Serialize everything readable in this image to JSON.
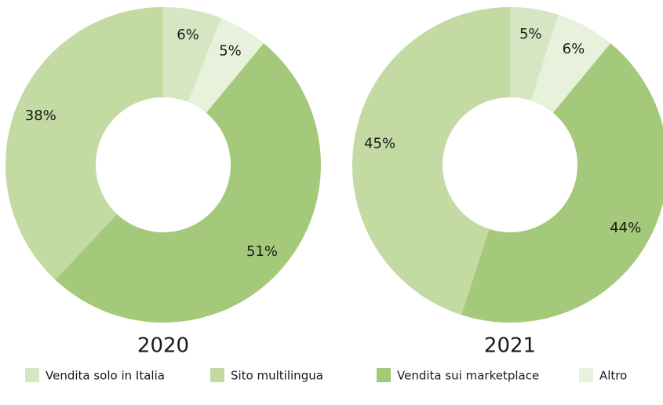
{
  "legend": [
    {
      "name": "Vendita solo in Italia",
      "color": "#d6e6c2"
    },
    {
      "name": "Sito multilingua",
      "color": "#c3dba3"
    },
    {
      "name": "Vendita sui marketplace",
      "color": "#a5c97a"
    },
    {
      "name": "Altro",
      "color": "#e7f1db"
    }
  ],
  "chart_data": [
    {
      "type": "pie",
      "title": "2020",
      "values": [
        6,
        38,
        51,
        5
      ],
      "value_labels": [
        "6%",
        "38%",
        "51%",
        "5%"
      ]
    },
    {
      "type": "pie",
      "title": "2021",
      "values": [
        5,
        45,
        44,
        6
      ],
      "value_labels": [
        "5%",
        "45%",
        "44%",
        "6%"
      ]
    }
  ]
}
